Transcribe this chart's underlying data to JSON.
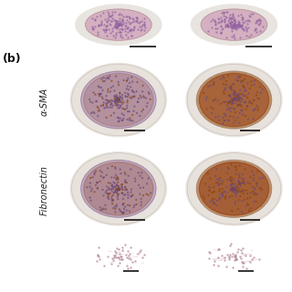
{
  "background_color": "#ffffff",
  "label_b": "(b)",
  "label_b_fontsize": 9,
  "row_labels": [
    "α-SMA",
    "Fibronectin"
  ],
  "row_label_fontsize": 7,
  "scale_bar_color": "#111111",
  "img_bg_color": "#f5f3f0",
  "row_configs": [
    [
      {
        "base": "#c0a8c8",
        "stain": "#8B4513",
        "level": 0.35
      },
      {
        "base": "#c09060",
        "stain": "#8B3010",
        "level": 0.72
      }
    ],
    [
      {
        "base": "#c0a8c8",
        "stain": "#8B4513",
        "level": 0.45
      },
      {
        "base": "#c09060",
        "stain": "#8B3010",
        "level": 0.78
      }
    ]
  ]
}
